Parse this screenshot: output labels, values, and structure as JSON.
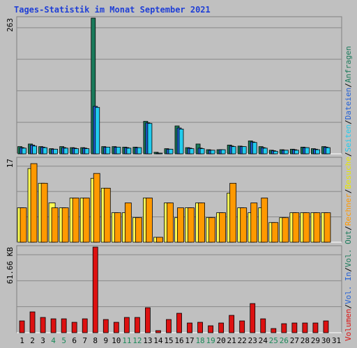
{
  "chart_data": {
    "type": "bar",
    "title": "Tages-Statistik im Monat September 2021",
    "categories": [
      "1",
      "2",
      "3",
      "4",
      "5",
      "6",
      "7",
      "8",
      "9",
      "10",
      "11",
      "12",
      "13",
      "14",
      "15",
      "16",
      "17",
      "18",
      "19",
      "20",
      "21",
      "22",
      "23",
      "24",
      "25",
      "26",
      "27",
      "28",
      "29",
      "30",
      "31"
    ],
    "weekend_days": [
      "4",
      "5",
      "11",
      "12",
      "18",
      "19",
      "25",
      "26"
    ],
    "panels": [
      {
        "id": "top",
        "max_label": "263",
        "ylim": [
          0,
          263
        ],
        "series": [
          {
            "name": "Anfragen",
            "color": "#1a7a5a",
            "values": [
              14,
              19,
              14,
              10,
              14,
              12,
              12,
              263,
              14,
              14,
              13,
              13,
              63,
              3,
              10,
              54,
              12,
              19,
              8,
              8,
              17,
              15,
              25,
              14,
              7,
              8,
              9,
              13,
              10,
              14,
              0
            ]
          },
          {
            "name": "Dateien",
            "color": "#1f5fd6",
            "values": [
              12,
              17,
              13,
              9,
              12,
              11,
              11,
              92,
              13,
              13,
              12,
              12,
              60,
              1,
              9,
              50,
              11,
              11,
              7,
              8,
              15,
              14,
              23,
              12,
              6,
              7,
              8,
              12,
              9,
              13,
              0
            ]
          },
          {
            "name": "Seiten",
            "color": "#22ccee",
            "values": [
              11,
              15,
              12,
              9,
              11,
              10,
              10,
              90,
              13,
              13,
              11,
              12,
              59,
              1,
              9,
              48,
              10,
              10,
              7,
              8,
              14,
              14,
              22,
              11,
              5,
              7,
              7,
              12,
              8,
              12,
              0
            ]
          }
        ]
      },
      {
        "id": "middle",
        "max_label": "17",
        "ylim": [
          0,
          17
        ],
        "series": [
          {
            "name": "Besuche",
            "color": "#ffff55",
            "values": [
              7,
              15,
              12,
              8,
              7,
              9,
              9,
              13,
              11,
              6,
              6,
              5,
              9,
              1,
              8,
              5,
              7,
              8,
              5,
              6,
              10,
              7,
              6,
              7,
              4,
              5,
              6,
              6,
              6,
              6,
              0
            ]
          },
          {
            "name": "Rechner",
            "color": "#ff9900",
            "values": [
              7,
              16,
              12,
              7,
              7,
              9,
              9,
              14,
              11,
              6,
              8,
              5,
              9,
              1,
              8,
              7,
              7,
              8,
              5,
              6,
              12,
              7,
              8,
              9,
              4,
              5,
              6,
              6,
              6,
              6,
              0
            ]
          }
        ]
      },
      {
        "id": "bottom",
        "max_label": "61.66 KB",
        "ylim": [
          0,
          61.66
        ],
        "series": [
          {
            "name": "Volumen",
            "color": "#dd1111",
            "values": [
              8.5,
              15,
              11,
              10,
              10,
              7.5,
              10,
              61.66,
              9.5,
              7.5,
              11,
              11,
              18,
              1.5,
              9.5,
              14,
              7,
              7.5,
              5,
              7,
              12.5,
              8.5,
              21,
              10,
              3,
              6.5,
              7,
              7,
              7,
              8.5,
              0
            ]
          }
        ]
      }
    ],
    "legend": [
      {
        "label": "Volumen",
        "color": "#dd1111"
      },
      {
        "label": "Vol. In",
        "color": "#1f5fd6"
      },
      {
        "label": "Vol. Out",
        "color": "#1a7a5a"
      },
      {
        "label": "Rechner",
        "color": "#ff9900"
      },
      {
        "label": "Besuche",
        "color": "#e8e800"
      },
      {
        "label": "Seiten",
        "color": "#22ccee"
      },
      {
        "label": "Dateien",
        "color": "#1f5fd6"
      },
      {
        "label": "Anfragen",
        "color": "#1a7a5a"
      }
    ],
    "legend_separator": "/",
    "colors": {
      "background": "#c0c0c0",
      "title": "#1f3fd6",
      "weekday_label": "#000000",
      "weekend_label": "#1a8a5a",
      "grid": "#888888"
    }
  }
}
